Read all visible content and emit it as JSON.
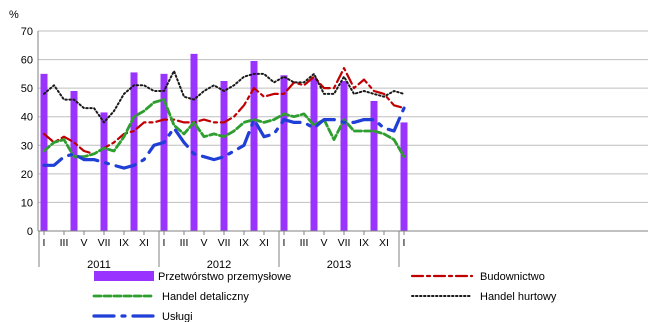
{
  "chart_data": {
    "type": "bar-line",
    "y_unit": "%",
    "ylim": [
      0,
      70
    ],
    "yticks": [
      0,
      10,
      20,
      30,
      40,
      50,
      60,
      70
    ],
    "grid": true,
    "legend_placement": "bottom",
    "month_labels": [
      "I",
      "III",
      "V",
      "VII",
      "IX",
      "XI",
      "I",
      "III",
      "V",
      "VII",
      "IX",
      "XI",
      "I",
      "III",
      "V",
      "VII",
      "IX",
      "XI",
      "I"
    ],
    "year_labels": [
      "2011",
      "2012",
      "2013"
    ],
    "colors": {
      "bars": "#9933ff",
      "budownictwo": "#c00000",
      "handel_detaliczny": "#2e9e2e",
      "handel_hurtowy": "#1a1a1a",
      "uslugi": "#1f3fd6"
    },
    "series": [
      {
        "name": "Przetwórstwo przemysłowe",
        "type": "bar",
        "values": [
          {
            "month": "2011-01",
            "y": 55.0
          },
          {
            "month": "2011-04",
            "y": 49.0
          },
          {
            "month": "2011-07",
            "y": 41.5
          },
          {
            "month": "2011-10",
            "y": 55.5
          },
          {
            "month": "2012-01",
            "y": 55.0
          },
          {
            "month": "2012-04",
            "y": 62.0
          },
          {
            "month": "2012-07",
            "y": 52.5
          },
          {
            "month": "2012-10",
            "y": 59.5
          },
          {
            "month": "2013-01",
            "y": 54.5
          },
          {
            "month": "2013-04",
            "y": 53.5
          },
          {
            "month": "2013-07",
            "y": 52.5
          },
          {
            "month": "2013-10",
            "y": 45.5
          },
          {
            "month": "2014-01",
            "y": 38.0
          }
        ]
      },
      {
        "name": "Budownictwo",
        "type": "line",
        "values": [
          {
            "month": "2011-01",
            "y": 34
          },
          {
            "month": "2011-02",
            "y": 31
          },
          {
            "month": "2011-03",
            "y": 33
          },
          {
            "month": "2011-04",
            "y": 31
          },
          {
            "month": "2011-05",
            "y": 28
          },
          {
            "month": "2011-06",
            "y": 27
          },
          {
            "month": "2011-07",
            "y": 29
          },
          {
            "month": "2011-08",
            "y": 31
          },
          {
            "month": "2011-09",
            "y": 34
          },
          {
            "month": "2011-10",
            "y": 35
          },
          {
            "month": "2011-11",
            "y": 38
          },
          {
            "month": "2011-12",
            "y": 38
          },
          {
            "month": "2012-01",
            "y": 39
          },
          {
            "month": "2012-02",
            "y": 39
          },
          {
            "month": "2012-03",
            "y": 38
          },
          {
            "month": "2012-04",
            "y": 38
          },
          {
            "month": "2012-05",
            "y": 39
          },
          {
            "month": "2012-06",
            "y": 38
          },
          {
            "month": "2012-07",
            "y": 38
          },
          {
            "month": "2012-08",
            "y": 40
          },
          {
            "month": "2012-09",
            "y": 44
          },
          {
            "month": "2012-10",
            "y": 50
          },
          {
            "month": "2012-11",
            "y": 47
          },
          {
            "month": "2012-12",
            "y": 48
          },
          {
            "month": "2013-01",
            "y": 48
          },
          {
            "month": "2013-02",
            "y": 52
          },
          {
            "month": "2013-03",
            "y": 51
          },
          {
            "month": "2013-04",
            "y": 54
          },
          {
            "month": "2013-05",
            "y": 50
          },
          {
            "month": "2013-06",
            "y": 50
          },
          {
            "month": "2013-07",
            "y": 57
          },
          {
            "month": "2013-08",
            "y": 50
          },
          {
            "month": "2013-09",
            "y": 53
          },
          {
            "month": "2013-10",
            "y": 49
          },
          {
            "month": "2013-11",
            "y": 48
          },
          {
            "month": "2013-12",
            "y": 44
          },
          {
            "month": "2014-01",
            "y": 43
          }
        ]
      },
      {
        "name": "Handel hurtowy",
        "type": "line",
        "values": [
          {
            "month": "2011-01",
            "y": 48
          },
          {
            "month": "2011-02",
            "y": 51
          },
          {
            "month": "2011-03",
            "y": 46
          },
          {
            "month": "2011-04",
            "y": 46
          },
          {
            "month": "2011-05",
            "y": 43
          },
          {
            "month": "2011-06",
            "y": 43
          },
          {
            "month": "2011-07",
            "y": 38
          },
          {
            "month": "2011-08",
            "y": 42
          },
          {
            "month": "2011-09",
            "y": 48
          },
          {
            "month": "2011-10",
            "y": 51
          },
          {
            "month": "2011-11",
            "y": 51
          },
          {
            "month": "2011-12",
            "y": 49
          },
          {
            "month": "2012-01",
            "y": 49
          },
          {
            "month": "2012-02",
            "y": 56
          },
          {
            "month": "2012-03",
            "y": 47
          },
          {
            "month": "2012-04",
            "y": 46
          },
          {
            "month": "2012-05",
            "y": 49
          },
          {
            "month": "2012-06",
            "y": 51
          },
          {
            "month": "2012-07",
            "y": 49
          },
          {
            "month": "2012-08",
            "y": 51
          },
          {
            "month": "2012-09",
            "y": 54
          },
          {
            "month": "2012-10",
            "y": 55
          },
          {
            "month": "2012-11",
            "y": 55
          },
          {
            "month": "2012-12",
            "y": 52
          },
          {
            "month": "2013-01",
            "y": 54
          },
          {
            "month": "2013-02",
            "y": 52
          },
          {
            "month": "2013-03",
            "y": 52
          },
          {
            "month": "2013-04",
            "y": 55
          },
          {
            "month": "2013-05",
            "y": 48
          },
          {
            "month": "2013-06",
            "y": 48
          },
          {
            "month": "2013-07",
            "y": 54
          },
          {
            "month": "2013-08",
            "y": 48
          },
          {
            "month": "2013-09",
            "y": 49
          },
          {
            "month": "2013-10",
            "y": 48
          },
          {
            "month": "2013-11",
            "y": 47
          },
          {
            "month": "2013-12",
            "y": 49
          },
          {
            "month": "2014-01",
            "y": 48
          }
        ]
      },
      {
        "name": "Handel detaliczny",
        "type": "line",
        "values": [
          {
            "month": "2011-01",
            "y": 28
          },
          {
            "month": "2011-02",
            "y": 31
          },
          {
            "month": "2011-03",
            "y": 32
          },
          {
            "month": "2011-04",
            "y": 26
          },
          {
            "month": "2011-05",
            "y": 26
          },
          {
            "month": "2011-06",
            "y": 27
          },
          {
            "month": "2011-07",
            "y": 29
          },
          {
            "month": "2011-08",
            "y": 28
          },
          {
            "month": "2011-09",
            "y": 33
          },
          {
            "month": "2011-10",
            "y": 40
          },
          {
            "month": "2011-11",
            "y": 42
          },
          {
            "month": "2011-12",
            "y": 45
          },
          {
            "month": "2012-01",
            "y": 46
          },
          {
            "month": "2012-02",
            "y": 37
          },
          {
            "month": "2012-03",
            "y": 34
          },
          {
            "month": "2012-04",
            "y": 38
          },
          {
            "month": "2012-05",
            "y": 33
          },
          {
            "month": "2012-06",
            "y": 34
          },
          {
            "month": "2012-07",
            "y": 33
          },
          {
            "month": "2012-08",
            "y": 35
          },
          {
            "month": "2012-09",
            "y": 38
          },
          {
            "month": "2012-10",
            "y": 39
          },
          {
            "month": "2012-11",
            "y": 38
          },
          {
            "month": "2012-12",
            "y": 39
          },
          {
            "month": "2013-01",
            "y": 41
          },
          {
            "month": "2013-02",
            "y": 40
          },
          {
            "month": "2013-03",
            "y": 41
          },
          {
            "month": "2013-04",
            "y": 37
          },
          {
            "month": "2013-05",
            "y": 39
          },
          {
            "month": "2013-06",
            "y": 32
          },
          {
            "month": "2013-07",
            "y": 39
          },
          {
            "month": "2013-08",
            "y": 35
          },
          {
            "month": "2013-09",
            "y": 35
          },
          {
            "month": "2013-10",
            "y": 35
          },
          {
            "month": "2013-11",
            "y": 34
          },
          {
            "month": "2013-12",
            "y": 32
          },
          {
            "month": "2014-01",
            "y": 26
          }
        ]
      },
      {
        "name": "Usługi",
        "type": "line",
        "values": [
          {
            "month": "2011-01",
            "y": 23
          },
          {
            "month": "2011-02",
            "y": 23
          },
          {
            "month": "2011-03",
            "y": 26
          },
          {
            "month": "2011-04",
            "y": 27
          },
          {
            "month": "2011-05",
            "y": 25
          },
          {
            "month": "2011-06",
            "y": 25
          },
          {
            "month": "2011-07",
            "y": 24
          },
          {
            "month": "2011-08",
            "y": 23
          },
          {
            "month": "2011-09",
            "y": 22
          },
          {
            "month": "2011-10",
            "y": 23
          },
          {
            "month": "2011-11",
            "y": 25
          },
          {
            "month": "2011-12",
            "y": 30
          },
          {
            "month": "2012-01",
            "y": 31
          },
          {
            "month": "2012-02",
            "y": 36
          },
          {
            "month": "2012-03",
            "y": 31
          },
          {
            "month": "2012-04",
            "y": 27
          },
          {
            "month": "2012-05",
            "y": 26
          },
          {
            "month": "2012-06",
            "y": 25
          },
          {
            "month": "2012-07",
            "y": 26
          },
          {
            "month": "2012-08",
            "y": 28
          },
          {
            "month": "2012-09",
            "y": 30
          },
          {
            "month": "2012-10",
            "y": 39
          },
          {
            "month": "2012-11",
            "y": 33
          },
          {
            "month": "2012-12",
            "y": 34
          },
          {
            "month": "2013-01",
            "y": 39
          },
          {
            "month": "2013-02",
            "y": 38
          },
          {
            "month": "2013-03",
            "y": 38
          },
          {
            "month": "2013-04",
            "y": 36
          },
          {
            "month": "2013-05",
            "y": 39
          },
          {
            "month": "2013-06",
            "y": 39
          },
          {
            "month": "2013-07",
            "y": 38
          },
          {
            "month": "2013-08",
            "y": 38
          },
          {
            "month": "2013-09",
            "y": 39
          },
          {
            "month": "2013-10",
            "y": 39
          },
          {
            "month": "2013-11",
            "y": 36
          },
          {
            "month": "2013-12",
            "y": 35
          },
          {
            "month": "2014-01",
            "y": 43
          }
        ]
      }
    ]
  }
}
